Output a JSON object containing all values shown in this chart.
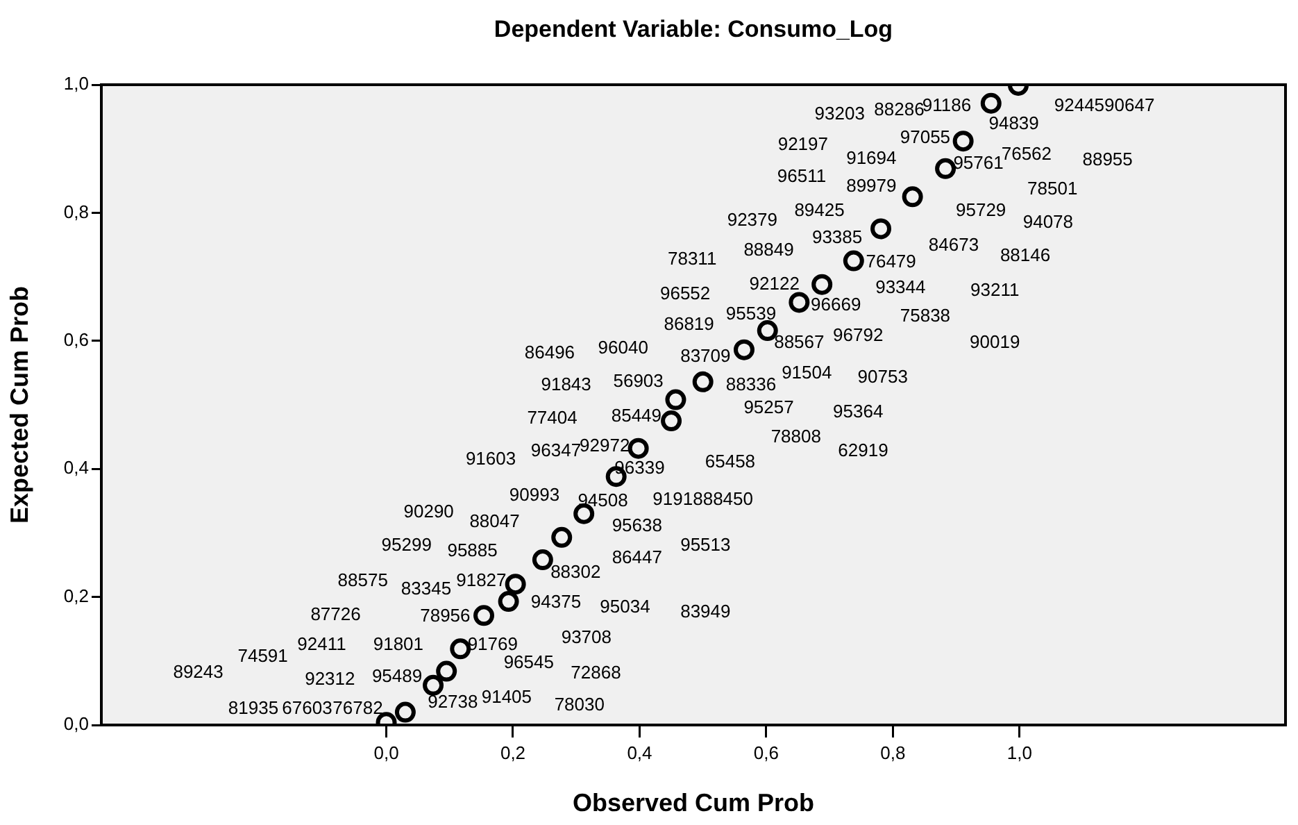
{
  "chart_data": {
    "type": "scatter",
    "title": "Dependent Variable: Consumo_Log",
    "xlabel": "Observed Cum Prob",
    "ylabel": "Expected Cum Prob",
    "xlim": [
      -0.45,
      1.42
    ],
    "ylim": [
      0,
      1
    ],
    "xticks": [
      {
        "value": 0,
        "label": "0,0"
      },
      {
        "value": 0.2,
        "label": "0,2"
      },
      {
        "value": 0.4,
        "label": "0,4"
      },
      {
        "value": 0.6,
        "label": "0,6"
      },
      {
        "value": 0.8,
        "label": "0,8"
      },
      {
        "value": 1,
        "label": "1,0"
      }
    ],
    "yticks": [
      {
        "value": 0,
        "label": "0,0"
      },
      {
        "value": 0.2,
        "label": "0,2"
      },
      {
        "value": 0.4,
        "label": "0,4"
      },
      {
        "value": 0.6,
        "label": "0,6"
      },
      {
        "value": 0.8,
        "label": "0,8"
      },
      {
        "value": 1,
        "label": "1,0"
      }
    ],
    "grid": false,
    "marker": "circle",
    "series": [
      {
        "color": "#000000",
        "x": [
          0.0,
          0.03,
          0.074,
          0.095,
          0.117,
          0.154,
          0.193,
          0.204,
          0.247,
          0.277,
          0.312,
          0.363,
          0.398,
          0.45,
          0.457,
          0.5,
          0.565,
          0.602,
          0.652,
          0.688,
          0.738,
          0.781,
          0.831,
          0.883,
          0.911,
          0.955,
          0.998
        ],
        "values": [
          0.004,
          0.02,
          0.062,
          0.084,
          0.119,
          0.171,
          0.193,
          0.22,
          0.258,
          0.293,
          0.33,
          0.388,
          0.432,
          0.475,
          0.508,
          0.536,
          0.586,
          0.616,
          0.66,
          0.688,
          0.725,
          0.775,
          0.825,
          0.869,
          0.912,
          0.971,
          0.999
        ]
      }
    ],
    "annotations": [
      "93203",
      "88286",
      "91186",
      "9244590647",
      "94839",
      "97055",
      "92197",
      "91694",
      "95761",
      "76562",
      "88955",
      "96511",
      "89979",
      "78501",
      "92379",
      "89425",
      "95729",
      "94078",
      "78311",
      "88849",
      "93385",
      "84673",
      "88146",
      "76479",
      "96552",
      "92122",
      "93344",
      "93211",
      "86819",
      "95539",
      "96669",
      "75838",
      "96792",
      "88567",
      "90019",
      "83709",
      "91504",
      "90753",
      "88336",
      "95257",
      "95364",
      "78808",
      "62919",
      "96339",
      "65458",
      "9191888450",
      "95513",
      "83949",
      "86496",
      "96040",
      "91843",
      "56903",
      "77404",
      "85449",
      "91603",
      "96347",
      "92972",
      "90993",
      "94508",
      "90290",
      "88047",
      "95638",
      "95299",
      "95885",
      "86447",
      "88302",
      "88575",
      "83345",
      "91827",
      "87726",
      "78956",
      "94375",
      "95034",
      "93708",
      "74591",
      "92411",
      "91801",
      "91769",
      "96545",
      "89243",
      "92312",
      "95489",
      "72868",
      "81935",
      "67603",
      "76782",
      "92738",
      "91405",
      "78030"
    ]
  }
}
